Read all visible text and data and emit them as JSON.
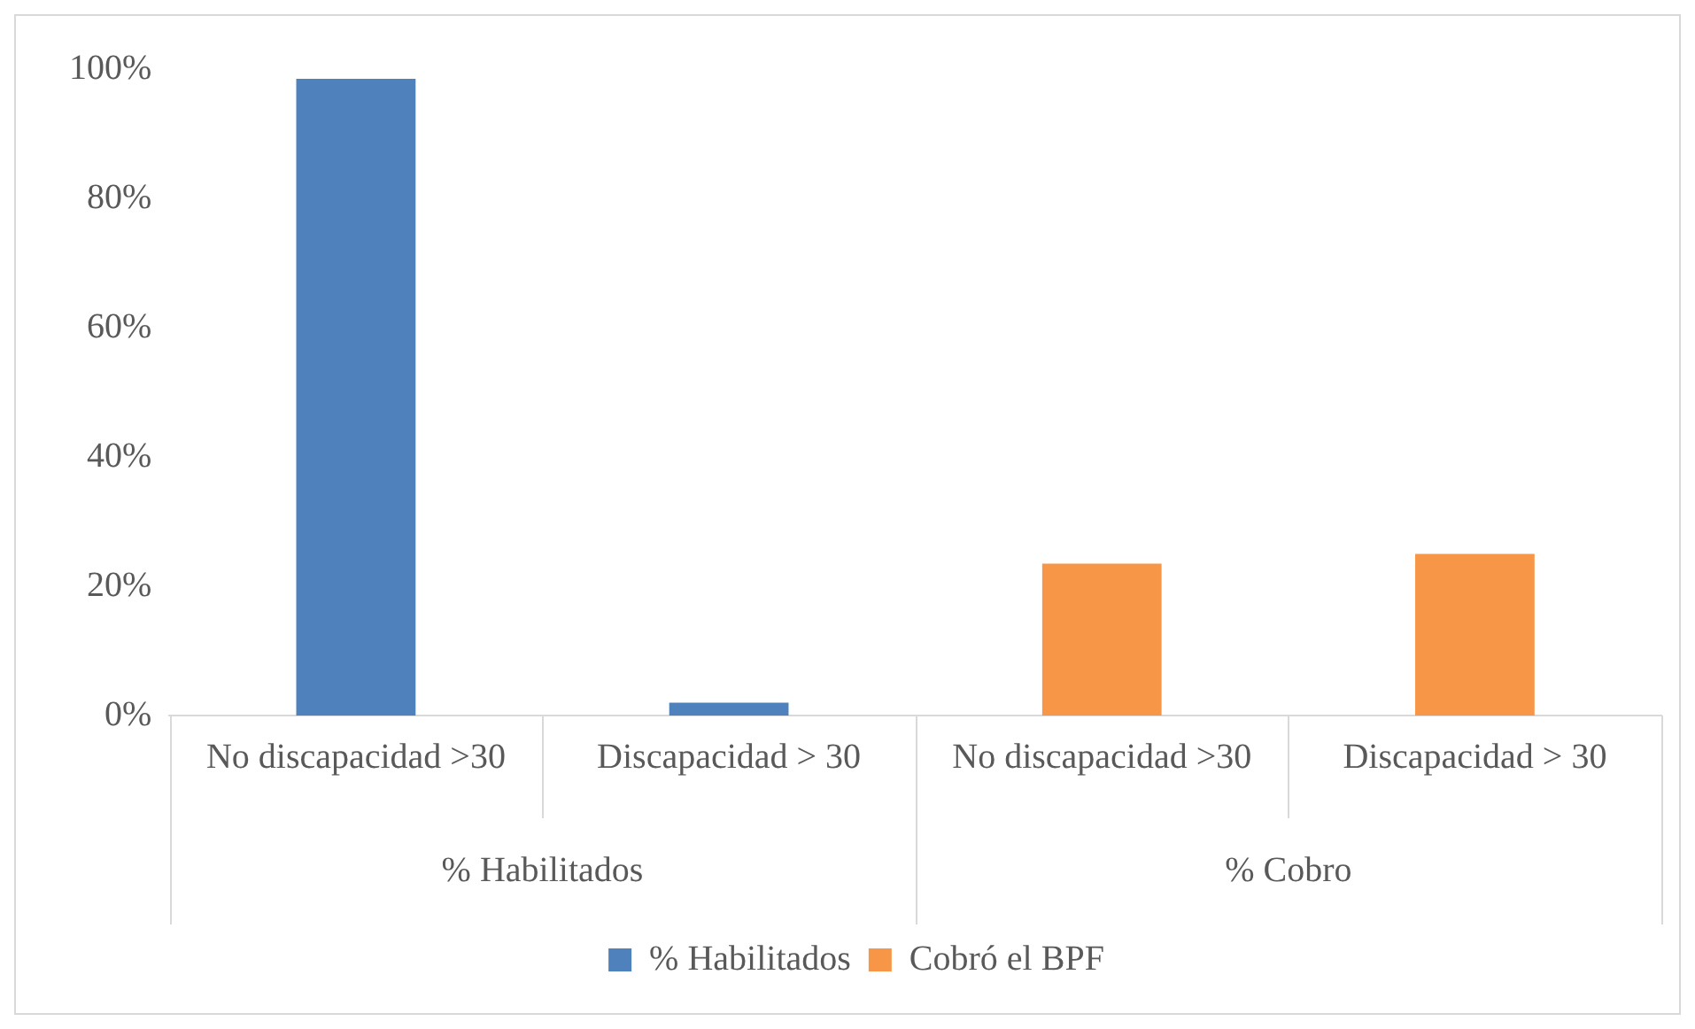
{
  "chart_data": {
    "type": "bar",
    "categories": [
      "No discapacidad >30",
      "Discapacidad > 30",
      "No discapacidad >30",
      "Discapacidad > 30"
    ],
    "series": [
      {
        "name": "% Habilitados",
        "color": "#4f81bd",
        "values": [
          98.5,
          2,
          null,
          null
        ]
      },
      {
        "name": "Cobró el BPF",
        "color": "#f79646",
        "values": [
          null,
          null,
          23.5,
          25
        ]
      }
    ],
    "ylim": [
      0,
      100
    ],
    "yticks": [
      {
        "value": 0,
        "label": "0%"
      },
      {
        "value": 20,
        "label": "20%"
      },
      {
        "value": 40,
        "label": "40%"
      },
      {
        "value": 60,
        "label": "60%"
      },
      {
        "value": 80,
        "label": "80%"
      },
      {
        "value": 100,
        "label": "100%"
      }
    ],
    "annotations": [
      "% Habilitados",
      "% Cobro"
    ],
    "grid": false,
    "legend": "bottom"
  }
}
